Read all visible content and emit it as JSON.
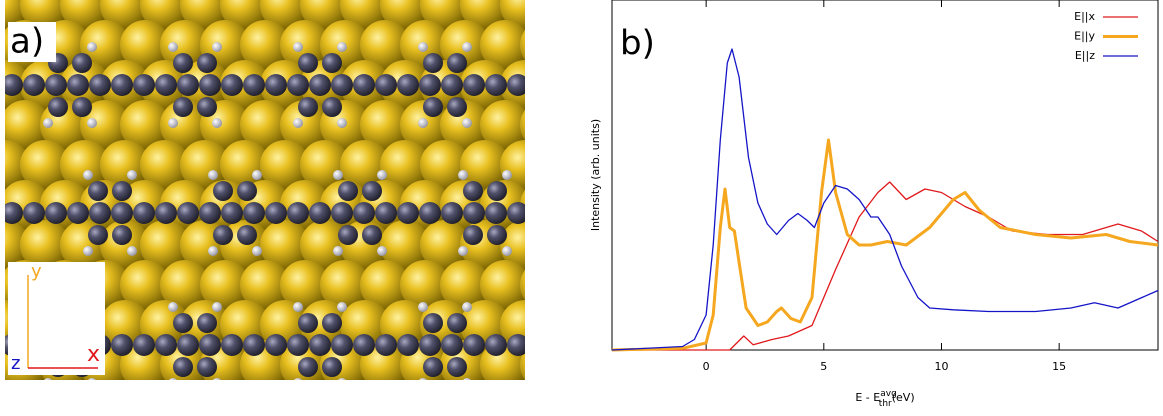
{
  "panel_a": {
    "label": "a)",
    "axis_labels": {
      "y": "y",
      "z": "z",
      "x": "x"
    }
  },
  "chart_data": {
    "type": "line",
    "panel_label": "b)",
    "y_label": "Intensity (arb. units)",
    "x_label": {
      "main": "E - E",
      "sup": "avg",
      "sub": "thr",
      "unit": "(eV)"
    },
    "xlim": [
      -4,
      19.2
    ],
    "ylim": [
      0,
      1
    ],
    "xticks": [
      0,
      5,
      10,
      15
    ],
    "legend": "upper right",
    "series": [
      {
        "name": "E||x",
        "color": "#e0191c",
        "width": 1.3,
        "x": [
          -4,
          1,
          1.6,
          2,
          2.8,
          3.5,
          4.5,
          5.5,
          6.5,
          7.3,
          7.8,
          8.5,
          9.3,
          10,
          11,
          12,
          13,
          14.5,
          16,
          17.5,
          18.5,
          19.2
        ],
        "values": [
          0,
          0,
          0.04,
          0.015,
          0.03,
          0.04,
          0.07,
          0.23,
          0.38,
          0.45,
          0.48,
          0.43,
          0.46,
          0.45,
          0.41,
          0.38,
          0.34,
          0.33,
          0.33,
          0.36,
          0.34,
          0.31
        ]
      },
      {
        "name": "E||y",
        "color": "#f5a71f",
        "width": 3,
        "x": [
          -4,
          -1,
          0,
          0.3,
          0.6,
          0.8,
          1,
          1.2,
          1.4,
          1.7,
          2.2,
          2.6,
          3,
          3.2,
          3.6,
          4,
          4.5,
          4.9,
          5.2,
          5.5,
          6,
          6.5,
          7,
          7.7,
          8.5,
          9.5,
          10.5,
          11,
          11.6,
          12.5,
          14,
          15.5,
          17,
          18,
          19.2
        ],
        "values": [
          0,
          0.005,
          0.02,
          0.1,
          0.35,
          0.46,
          0.35,
          0.34,
          0.25,
          0.12,
          0.07,
          0.08,
          0.11,
          0.12,
          0.09,
          0.08,
          0.15,
          0.45,
          0.6,
          0.45,
          0.33,
          0.3,
          0.3,
          0.31,
          0.3,
          0.35,
          0.43,
          0.45,
          0.4,
          0.35,
          0.33,
          0.32,
          0.33,
          0.31,
          0.3
        ]
      },
      {
        "name": "E||z",
        "color": "#1515c8",
        "width": 1.3,
        "x": [
          -4,
          -1,
          -0.5,
          0,
          0.3,
          0.6,
          0.9,
          1.1,
          1.4,
          1.8,
          2.2,
          2.6,
          3,
          3.5,
          3.9,
          4.3,
          4.6,
          5,
          5.5,
          6,
          6.5,
          7,
          7.3,
          7.8,
          8.3,
          9,
          9.5,
          10.5,
          12,
          14,
          15.5,
          16.5,
          17.5,
          19.2
        ],
        "values": [
          0,
          0.01,
          0.03,
          0.1,
          0.3,
          0.6,
          0.82,
          0.86,
          0.78,
          0.55,
          0.42,
          0.36,
          0.33,
          0.37,
          0.39,
          0.37,
          0.35,
          0.42,
          0.47,
          0.46,
          0.43,
          0.38,
          0.38,
          0.33,
          0.24,
          0.15,
          0.12,
          0.115,
          0.11,
          0.11,
          0.12,
          0.135,
          0.12,
          0.17
        ]
      }
    ]
  }
}
